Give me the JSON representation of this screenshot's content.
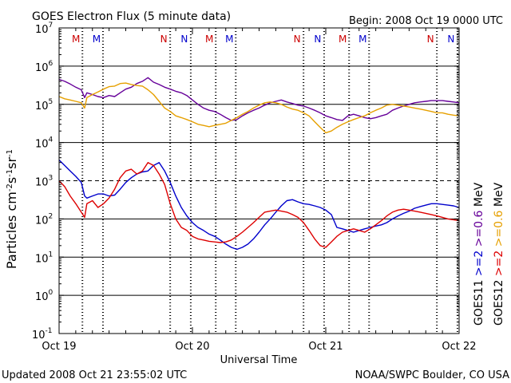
{
  "chart_data": {
    "type": "line",
    "title": "GOES Electron Flux (5 minute data)",
    "begin_label": "Begin: 2008 Oct 19 0000 UTC",
    "xlabel": "Universal Time",
    "ylabel_text": "Particles cm",
    "ylabel_sup1": "-2",
    "ylabel_mid1": "s",
    "ylabel_sup2": "-1",
    "ylabel_mid2": "sr",
    "ylabel_sup3": "-1",
    "footer_left": "Updated 2008 Oct 21 23:55:02 UTC",
    "footer_right": "NOAA/SWPC Boulder, CO USA",
    "ylog": true,
    "ylim": [
      0.1,
      10000000
    ],
    "xlim_hours": [
      0,
      72
    ],
    "x_ticks": [
      {
        "hour": 0,
        "label": "Oct 19"
      },
      {
        "hour": 24,
        "label": "Oct 20"
      },
      {
        "hour": 48,
        "label": "Oct 21"
      },
      {
        "hour": 72,
        "label": "Oct 22"
      }
    ],
    "y_ticks": [
      {
        "exp": 7,
        "base": "10",
        "sup": "7"
      },
      {
        "exp": 6,
        "base": "10",
        "sup": "6"
      },
      {
        "exp": 5,
        "base": "10",
        "sup": "5"
      },
      {
        "exp": 4,
        "base": "10",
        "sup": "4"
      },
      {
        "exp": 3,
        "base": "10",
        "sup": "3"
      },
      {
        "exp": 2,
        "base": "10",
        "sup": "2"
      },
      {
        "exp": 1,
        "base": "10",
        "sup": "1"
      },
      {
        "exp": 0,
        "base": "10",
        "sup": "0"
      },
      {
        "exp": -1,
        "base": "10",
        "sup": "-1"
      }
    ],
    "threshold_lines": [
      {
        "exp": 3,
        "style": "dashed"
      }
    ],
    "markers": [
      {
        "hour": 4.2,
        "label": "M",
        "color": "#cc0000"
      },
      {
        "hour": 7.9,
        "label": "M",
        "color": "#0000cc"
      },
      {
        "hour": 20.0,
        "label": "N",
        "color": "#cc0000"
      },
      {
        "hour": 23.7,
        "label": "N",
        "color": "#0000cc"
      },
      {
        "hour": 28.2,
        "label": "M",
        "color": "#cc0000"
      },
      {
        "hour": 31.8,
        "label": "M",
        "color": "#0000cc"
      },
      {
        "hour": 44.0,
        "label": "N",
        "color": "#cc0000"
      },
      {
        "hour": 47.7,
        "label": "N",
        "color": "#0000cc"
      },
      {
        "hour": 52.2,
        "label": "M",
        "color": "#cc0000"
      },
      {
        "hour": 55.8,
        "label": "M",
        "color": "#0000cc"
      },
      {
        "hour": 68.0,
        "label": "N",
        "color": "#cc0000"
      },
      {
        "hour": 71.7,
        "label": "N",
        "color": "#0000cc"
      }
    ],
    "dashed_verticals_hours": [
      4.2,
      7.9,
      20.0,
      23.7,
      28.2,
      31.8,
      44.0,
      47.7,
      52.2,
      55.8,
      68.0,
      71.7
    ],
    "legend": {
      "col1": [
        {
          "text": "GOES11",
          "color": "#000000"
        },
        {
          "text": ">=2",
          "color": "#0000cc"
        },
        {
          "text": ">=0.6",
          "color": "#660099"
        },
        {
          "text": "MeV",
          "color": "#000000"
        }
      ],
      "col2": [
        {
          "text": "GOES12",
          "color": "#000000"
        },
        {
          "text": ">=2",
          "color": "#dd0000"
        },
        {
          "text": ">=0.6",
          "color": "#e6a000"
        },
        {
          "text": "MeV",
          "color": "#000000"
        }
      ]
    },
    "series": [
      {
        "color": "#660099",
        "x": [
          0,
          1,
          2,
          3,
          4,
          4.6,
          5,
          6,
          7,
          8,
          9,
          10,
          11,
          12,
          13,
          14,
          15,
          16,
          17,
          18,
          19,
          20,
          21,
          22,
          23,
          24,
          25,
          26,
          27,
          28,
          29,
          30,
          31,
          32,
          33,
          34,
          35,
          36,
          37,
          38,
          39,
          40,
          41,
          42,
          43,
          44,
          45,
          46,
          47,
          48,
          49,
          50,
          51,
          52,
          53,
          54,
          55,
          56,
          57,
          58,
          59,
          60,
          61,
          62,
          63,
          64,
          65,
          66,
          67,
          68,
          69,
          70,
          71,
          72
        ],
        "y": [
          450000,
          400000,
          340000,
          280000,
          240000,
          150000,
          200000,
          180000,
          160000,
          150000,
          170000,
          160000,
          200000,
          250000,
          280000,
          350000,
          400000,
          500000,
          380000,
          330000,
          280000,
          250000,
          220000,
          200000,
          170000,
          130000,
          100000,
          80000,
          70000,
          65000,
          55000,
          45000,
          38000,
          40000,
          50000,
          60000,
          70000,
          80000,
          95000,
          110000,
          120000,
          130000,
          115000,
          105000,
          95000,
          90000,
          80000,
          70000,
          60000,
          50000,
          45000,
          40000,
          38000,
          50000,
          55000,
          50000,
          45000,
          42000,
          45000,
          50000,
          55000,
          70000,
          80000,
          90000,
          100000,
          110000,
          115000,
          120000,
          125000,
          125000,
          125000,
          120000,
          115000,
          110000
        ]
      },
      {
        "color": "#e6a000",
        "x": [
          0,
          1,
          2,
          3,
          4,
          4.6,
          5,
          6,
          7,
          8,
          9,
          10,
          11,
          12,
          13,
          14,
          15,
          16,
          17,
          18,
          19,
          20,
          21,
          22,
          23,
          24,
          25,
          26,
          27,
          28,
          29,
          30,
          31,
          32,
          33,
          34,
          35,
          36,
          37,
          38,
          39,
          40,
          41,
          42,
          43,
          44,
          45,
          46,
          47,
          48,
          49,
          50,
          51,
          52,
          53,
          54,
          55,
          56,
          57,
          58,
          59,
          60,
          61,
          62,
          63,
          64,
          65,
          66,
          67,
          68,
          69,
          70,
          71,
          72
        ],
        "y": [
          160000,
          140000,
          130000,
          120000,
          110000,
          80000,
          150000,
          180000,
          210000,
          250000,
          290000,
          300000,
          350000,
          360000,
          330000,
          310000,
          300000,
          240000,
          180000,
          120000,
          80000,
          65000,
          50000,
          45000,
          40000,
          35000,
          30000,
          28000,
          26000,
          28000,
          30000,
          32000,
          38000,
          45000,
          55000,
          65000,
          80000,
          95000,
          110000,
          115000,
          110000,
          100000,
          85000,
          75000,
          70000,
          60000,
          50000,
          35000,
          25000,
          18000,
          20000,
          25000,
          30000,
          35000,
          40000,
          45000,
          50000,
          60000,
          70000,
          80000,
          95000,
          100000,
          95000,
          90000,
          85000,
          80000,
          75000,
          70000,
          65000,
          60000,
          60000,
          55000,
          52000,
          50000
        ]
      },
      {
        "color": "#0000cc",
        "x": [
          0,
          1,
          2,
          3,
          4,
          4.6,
          5,
          6,
          7,
          8,
          9,
          10,
          11,
          12,
          13,
          14,
          15,
          16,
          17,
          18,
          19,
          20,
          21,
          22,
          23,
          24,
          25,
          26,
          27,
          28,
          29,
          30,
          31,
          32,
          33,
          34,
          35,
          36,
          37,
          38,
          39,
          40,
          41,
          42,
          43,
          44,
          45,
          46,
          47,
          48,
          49,
          50,
          51,
          52,
          53,
          54,
          55,
          56,
          57,
          58,
          59,
          60,
          61,
          62,
          63,
          64,
          65,
          66,
          67,
          68,
          69,
          70,
          71,
          72
        ],
        "y": [
          3500,
          2500,
          1800,
          1300,
          900,
          400,
          350,
          400,
          450,
          450,
          400,
          420,
          600,
          900,
          1200,
          1500,
          1700,
          1800,
          2500,
          3000,
          1800,
          900,
          400,
          200,
          120,
          80,
          60,
          50,
          40,
          35,
          28,
          22,
          18,
          16,
          18,
          22,
          30,
          45,
          70,
          100,
          150,
          220,
          300,
          320,
          280,
          250,
          240,
          220,
          200,
          170,
          130,
          60,
          55,
          50,
          45,
          50,
          55,
          60,
          65,
          70,
          80,
          100,
          120,
          140,
          160,
          190,
          210,
          230,
          250,
          250,
          240,
          230,
          220,
          200
        ]
      },
      {
        "color": "#dd0000",
        "x": [
          0,
          1,
          2,
          3,
          4,
          4.6,
          5,
          6,
          7,
          8,
          9,
          10,
          11,
          12,
          13,
          14,
          15,
          16,
          17,
          18,
          19,
          20,
          21,
          22,
          23,
          24,
          25,
          26,
          27,
          28,
          29,
          30,
          31,
          32,
          33,
          34,
          35,
          36,
          37,
          38,
          39,
          40,
          41,
          42,
          43,
          44,
          45,
          46,
          47,
          48,
          49,
          50,
          51,
          52,
          53,
          54,
          55,
          56,
          57,
          58,
          59,
          60,
          61,
          62,
          63,
          64,
          65,
          66,
          67,
          68,
          69,
          70,
          71,
          72
        ],
        "y": [
          1000,
          700,
          400,
          250,
          150,
          110,
          250,
          300,
          200,
          250,
          350,
          600,
          1200,
          1800,
          2000,
          1500,
          1800,
          3000,
          2500,
          1500,
          800,
          250,
          100,
          60,
          50,
          35,
          30,
          28,
          26,
          25,
          24,
          25,
          28,
          35,
          45,
          60,
          80,
          110,
          150,
          160,
          170,
          160,
          150,
          130,
          110,
          80,
          50,
          30,
          20,
          18,
          25,
          35,
          45,
          50,
          55,
          50,
          45,
          55,
          70,
          90,
          120,
          150,
          170,
          180,
          170,
          160,
          150,
          140,
          130,
          120,
          110,
          100,
          95,
          90
        ]
      }
    ]
  }
}
